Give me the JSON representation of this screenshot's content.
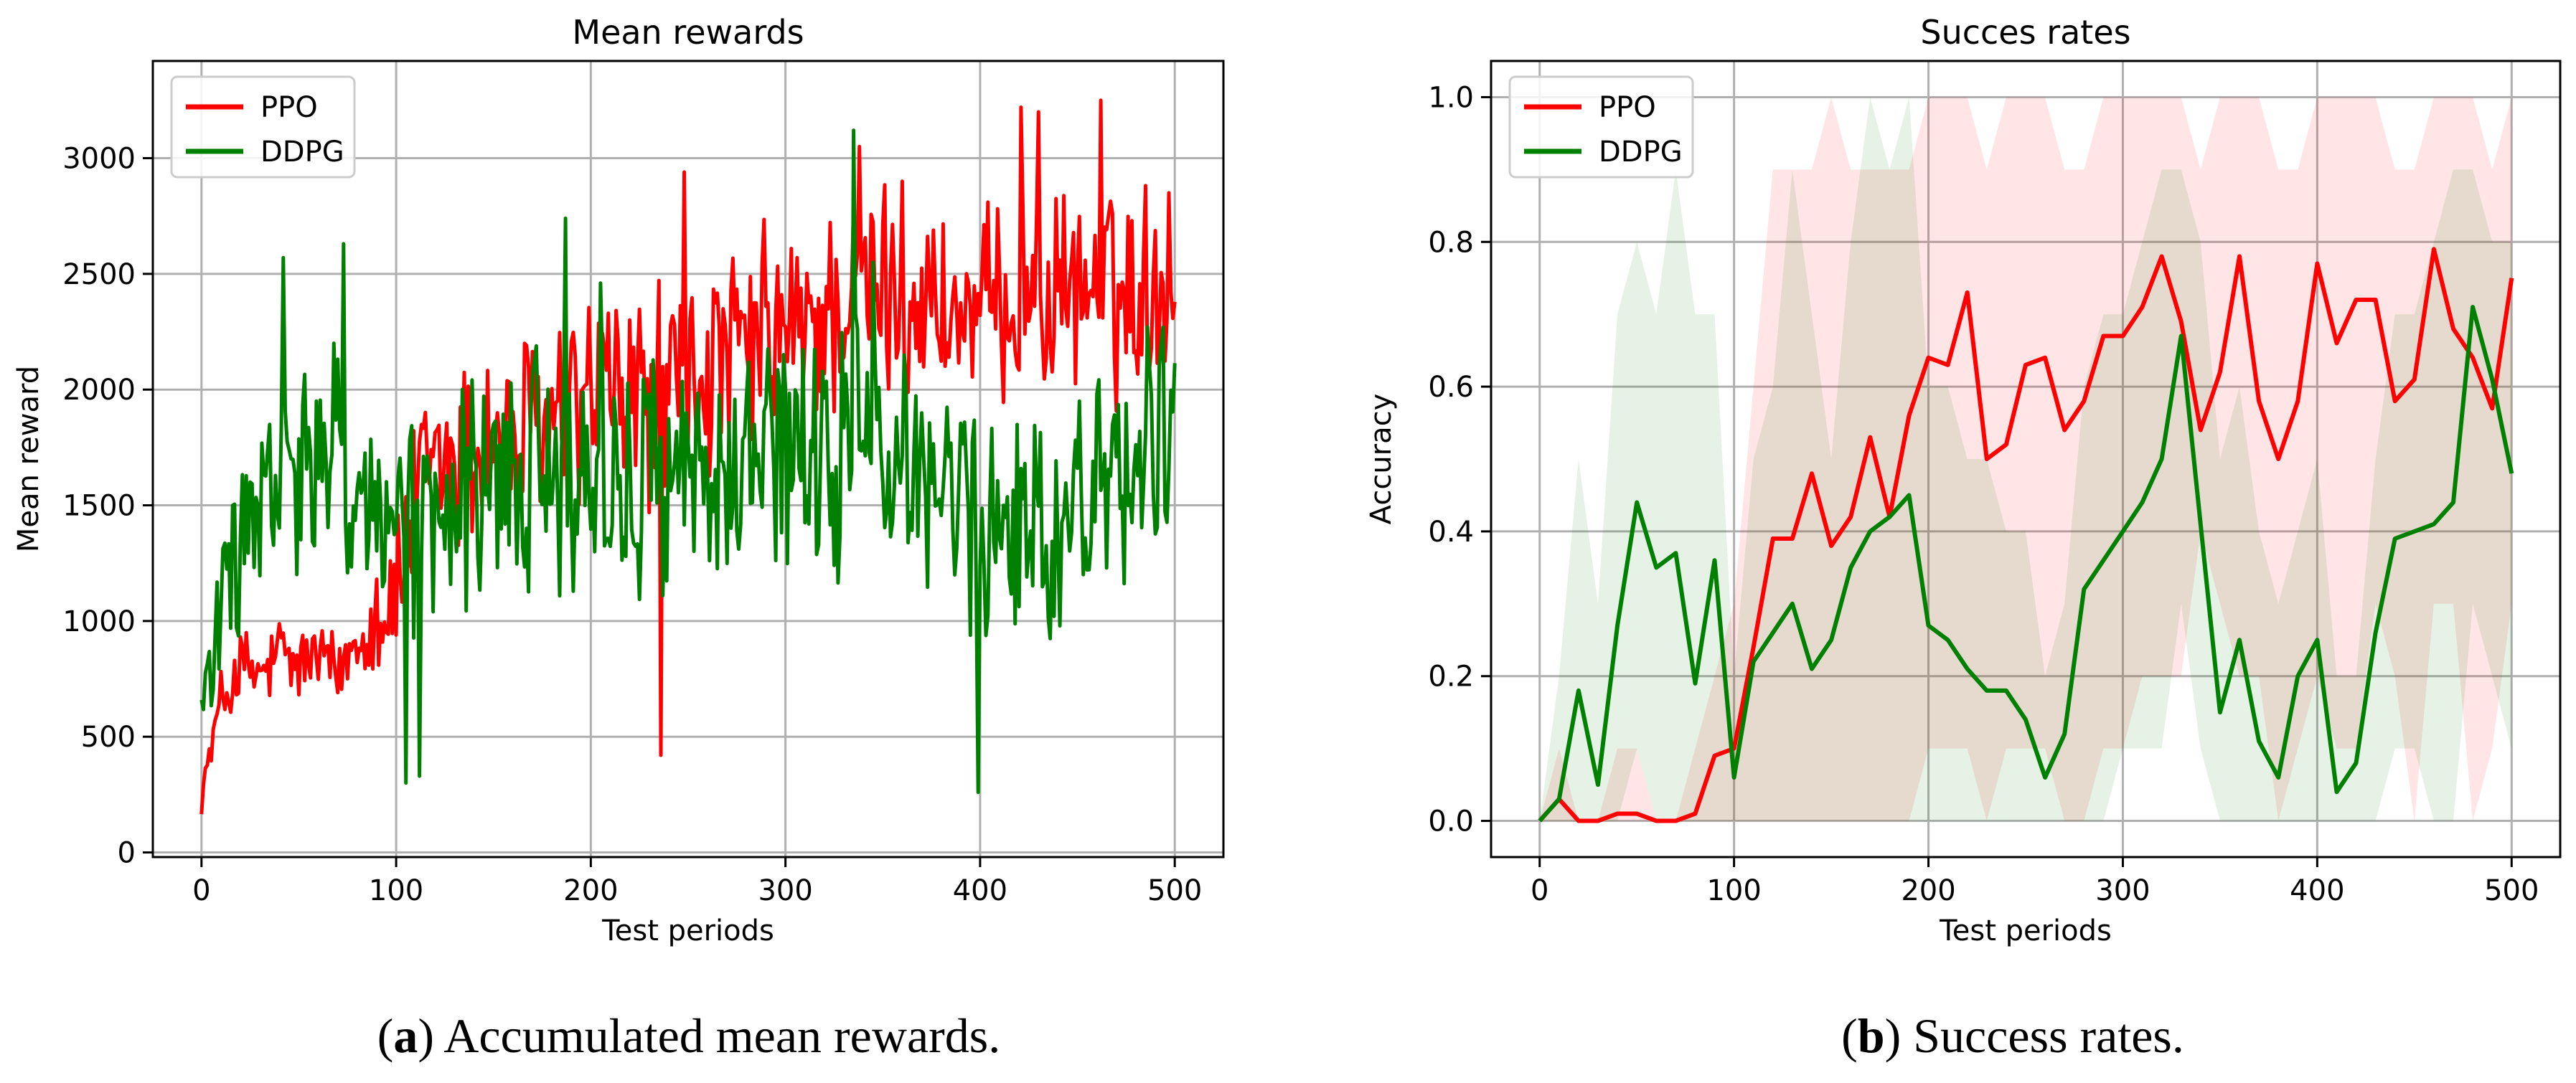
{
  "colors": {
    "ppo": "#ff0000",
    "ddpg": "#008000",
    "grid": "#b0b0b0",
    "axis": "#000000"
  },
  "captions": [
    {
      "open": "(",
      "letter": "a",
      "rest": ") Accumulated mean rewards."
    },
    {
      "open": "(",
      "letter": "b",
      "rest": ") Success rates."
    }
  ],
  "chart_data": [
    {
      "type": "line",
      "title": "Mean rewards",
      "xlabel": "Test periods",
      "ylabel": "Mean reward",
      "xlim": [
        -25,
        525
      ],
      "ylim": [
        -20,
        3420
      ],
      "xticks": [
        0,
        100,
        200,
        300,
        400,
        500
      ],
      "yticks": [
        0,
        500,
        1000,
        1500,
        2000,
        2500,
        3000
      ],
      "grid": true,
      "legend": "top-left",
      "series": [
        {
          "name": "PPO",
          "color": "#ff0000",
          "x": [
            0,
            10,
            20,
            30,
            40,
            50,
            60,
            70,
            80,
            90,
            100,
            110,
            120,
            130,
            140,
            150,
            160,
            170,
            180,
            190,
            200,
            210,
            220,
            230,
            240,
            250,
            260,
            270,
            280,
            290,
            300,
            310,
            320,
            330,
            340,
            350,
            360,
            370,
            380,
            390,
            400,
            410,
            420,
            430,
            440,
            450,
            460,
            470,
            480,
            490,
            500
          ],
          "y": [
            250,
            650,
            800,
            750,
            850,
            800,
            850,
            750,
            950,
            1050,
            1100,
            1500,
            1650,
            1700,
            1750,
            1800,
            1750,
            1800,
            1850,
            1850,
            2000,
            2000,
            1950,
            1950,
            2000,
            2050,
            2050,
            2100,
            2150,
            2200,
            2250,
            2200,
            2350,
            2350,
            2400,
            2450,
            2350,
            2400,
            2350,
            2300,
            2300,
            2350,
            2450,
            2400,
            2400,
            2450,
            2450,
            2400,
            2450,
            2450,
            2450
          ],
          "amplitude": [
            80,
            150,
            200,
            200,
            200,
            200,
            200,
            200,
            250,
            300,
            400,
            450,
            450,
            500,
            500,
            500,
            500,
            500,
            500,
            500,
            500,
            500,
            500,
            500,
            500,
            500,
            500,
            500,
            500,
            500,
            500,
            500,
            500,
            500,
            500,
            450,
            450,
            450,
            450,
            450,
            450,
            450,
            450,
            450,
            450,
            450,
            450,
            450,
            450,
            450,
            400
          ],
          "peaks": [
            [
              236,
              420
            ],
            [
              338,
              3050
            ],
            [
              421,
              3220
            ],
            [
              430,
              3200
            ],
            [
              462,
              3250
            ],
            [
              497,
              2850
            ],
            [
              248,
              2940
            ],
            [
              360,
              2900
            ]
          ]
        },
        {
          "name": "DDPG",
          "color": "#008000",
          "x": [
            0,
            10,
            20,
            30,
            40,
            50,
            60,
            70,
            80,
            90,
            100,
            110,
            120,
            130,
            140,
            150,
            160,
            170,
            180,
            190,
            200,
            210,
            220,
            230,
            240,
            250,
            260,
            270,
            280,
            290,
            300,
            310,
            320,
            330,
            340,
            350,
            360,
            370,
            380,
            390,
            400,
            410,
            420,
            430,
            440,
            450,
            460,
            470,
            480,
            490,
            500
          ],
          "y": [
            650,
            1000,
            1350,
            1450,
            1550,
            1650,
            1600,
            1650,
            1550,
            1500,
            1300,
            1350,
            1400,
            1450,
            1500,
            1550,
            1600,
            1650,
            1650,
            1650,
            1600,
            1600,
            1600,
            1650,
            1700,
            1650,
            1600,
            1600,
            1650,
            1650,
            1700,
            1650,
            1650,
            1750,
            1750,
            1700,
            1650,
            1650,
            1600,
            1550,
            1450,
            1400,
            1400,
            1400,
            1450,
            1500,
            1600,
            1650,
            1750,
            1800,
            1750
          ],
          "amplitude": [
            80,
            350,
            450,
            450,
            500,
            500,
            500,
            550,
            550,
            550,
            550,
            550,
            550,
            550,
            550,
            550,
            550,
            550,
            550,
            550,
            550,
            550,
            550,
            550,
            550,
            550,
            550,
            550,
            550,
            550,
            550,
            550,
            550,
            550,
            550,
            550,
            550,
            550,
            550,
            550,
            550,
            550,
            550,
            550,
            550,
            550,
            550,
            550,
            550,
            550,
            450
          ],
          "peaks": [
            [
              42,
              2570
            ],
            [
              73,
              2630
            ],
            [
              187,
              2740
            ],
            [
              205,
              2460
            ],
            [
              335,
              3120
            ],
            [
              399,
              260
            ],
            [
              105,
              300
            ],
            [
              112,
              330
            ],
            [
              345,
              2550
            ]
          ]
        }
      ]
    },
    {
      "type": "line",
      "title": "Succes rates",
      "xlabel": "Test periods",
      "ylabel": "Accuracy",
      "xlim": [
        -25,
        525
      ],
      "ylim": [
        -0.05,
        1.05
      ],
      "xticks": [
        0,
        100,
        200,
        300,
        400,
        500
      ],
      "yticks": [
        0.0,
        0.2,
        0.4,
        0.6,
        0.8,
        1.0
      ],
      "ytick_labels": [
        "0.0",
        "0.2",
        "0.4",
        "0.6",
        "0.8",
        "1.0"
      ],
      "grid": true,
      "legend": "top-left",
      "series": [
        {
          "name": "PPO",
          "color": "#ff0000",
          "x": [
            0,
            10,
            20,
            30,
            40,
            50,
            60,
            70,
            80,
            90,
            100,
            110,
            120,
            130,
            140,
            150,
            160,
            170,
            180,
            190,
            200,
            210,
            220,
            230,
            240,
            250,
            260,
            270,
            280,
            290,
            300,
            310,
            320,
            330,
            340,
            350,
            360,
            370,
            380,
            390,
            400,
            410,
            420,
            430,
            440,
            450,
            460,
            470,
            480,
            490,
            500
          ],
          "y": [
            0.0,
            0.03,
            0.0,
            0.0,
            0.01,
            0.01,
            0.0,
            0.0,
            0.01,
            0.09,
            0.1,
            0.24,
            0.39,
            0.39,
            0.48,
            0.38,
            0.42,
            0.53,
            0.42,
            0.56,
            0.64,
            0.63,
            0.73,
            0.5,
            0.52,
            0.63,
            0.64,
            0.54,
            0.58,
            0.67,
            0.67,
            0.71,
            0.78,
            0.69,
            0.54,
            0.62,
            0.78,
            0.58,
            0.5,
            0.58,
            0.77,
            0.66,
            0.72,
            0.72,
            0.58,
            0.61,
            0.79,
            0.68,
            0.64,
            0.57,
            0.75
          ],
          "band_low": [
            0.0,
            0.0,
            0.0,
            0.0,
            0.0,
            0.0,
            0.0,
            0.0,
            0.0,
            0.0,
            0.0,
            0.0,
            0.0,
            0.0,
            0.0,
            0.0,
            0.0,
            0.0,
            0.0,
            0.0,
            0.1,
            0.1,
            0.1,
            0.0,
            0.1,
            0.1,
            0.1,
            0.0,
            0.0,
            0.1,
            0.1,
            0.2,
            0.2,
            0.2,
            0.4,
            0.3,
            0.2,
            0.2,
            0.0,
            0.1,
            0.2,
            0.1,
            0.1,
            0.3,
            0.2,
            0.0,
            0.3,
            0.3,
            0.0,
            0.1,
            0.3
          ],
          "band_high": [
            0.0,
            0.1,
            0.0,
            0.0,
            0.1,
            0.1,
            0.0,
            0.0,
            0.1,
            0.2,
            0.3,
            0.6,
            0.9,
            0.9,
            0.9,
            1.0,
            0.9,
            0.9,
            0.9,
            0.9,
            1.0,
            1.0,
            1.0,
            0.9,
            1.0,
            1.0,
            1.0,
            0.9,
            0.9,
            1.0,
            1.0,
            1.0,
            1.0,
            1.0,
            0.9,
            1.0,
            1.0,
            1.0,
            0.9,
            0.9,
            1.0,
            1.0,
            1.0,
            1.0,
            0.9,
            0.9,
            1.0,
            1.0,
            1.0,
            0.9,
            1.0
          ]
        },
        {
          "name": "DDPG",
          "color": "#008000",
          "x": [
            0,
            10,
            20,
            30,
            40,
            50,
            60,
            70,
            80,
            90,
            100,
            110,
            120,
            130,
            140,
            150,
            160,
            170,
            180,
            190,
            200,
            210,
            220,
            230,
            240,
            250,
            260,
            270,
            280,
            290,
            300,
            310,
            320,
            330,
            340,
            350,
            360,
            370,
            380,
            390,
            400,
            410,
            420,
            430,
            440,
            450,
            460,
            470,
            480,
            490,
            500
          ],
          "y": [
            0.0,
            0.03,
            0.18,
            0.05,
            0.27,
            0.44,
            0.35,
            0.37,
            0.19,
            0.36,
            0.06,
            0.22,
            0.26,
            0.3,
            0.21,
            0.25,
            0.35,
            0.4,
            0.42,
            0.45,
            0.27,
            0.25,
            0.21,
            0.18,
            0.18,
            0.14,
            0.06,
            0.12,
            0.32,
            0.36,
            0.4,
            0.44,
            0.5,
            0.67,
            0.41,
            0.15,
            0.25,
            0.11,
            0.06,
            0.2,
            0.25,
            0.04,
            0.08,
            0.26,
            0.39,
            0.4,
            0.41,
            0.44,
            0.71,
            0.61,
            0.48
          ],
          "band_low": [
            0.0,
            0.0,
            0.0,
            0.0,
            0.0,
            0.1,
            0.0,
            0.0,
            0.0,
            0.0,
            0.0,
            0.0,
            0.0,
            0.0,
            0.0,
            0.0,
            0.0,
            0.0,
            0.0,
            0.0,
            0.0,
            0.0,
            0.0,
            0.0,
            0.0,
            0.0,
            0.0,
            0.0,
            0.0,
            0.0,
            0.1,
            0.1,
            0.1,
            0.3,
            0.1,
            0.0,
            0.0,
            0.0,
            0.0,
            0.0,
            0.0,
            0.0,
            0.0,
            0.0,
            0.1,
            0.1,
            0.0,
            0.0,
            0.3,
            0.2,
            0.1
          ],
          "band_high": [
            0.0,
            0.2,
            0.5,
            0.3,
            0.7,
            0.8,
            0.7,
            0.9,
            0.7,
            0.7,
            0.2,
            0.5,
            0.6,
            0.9,
            0.7,
            0.5,
            0.8,
            1.0,
            0.9,
            1.0,
            0.6,
            0.6,
            0.5,
            0.5,
            0.4,
            0.4,
            0.2,
            0.3,
            0.6,
            0.7,
            0.7,
            0.8,
            0.9,
            0.9,
            0.8,
            0.5,
            0.6,
            0.4,
            0.3,
            0.4,
            0.5,
            0.2,
            0.2,
            0.5,
            0.7,
            0.7,
            0.8,
            0.9,
            0.9,
            0.8,
            0.8
          ]
        }
      ]
    }
  ]
}
